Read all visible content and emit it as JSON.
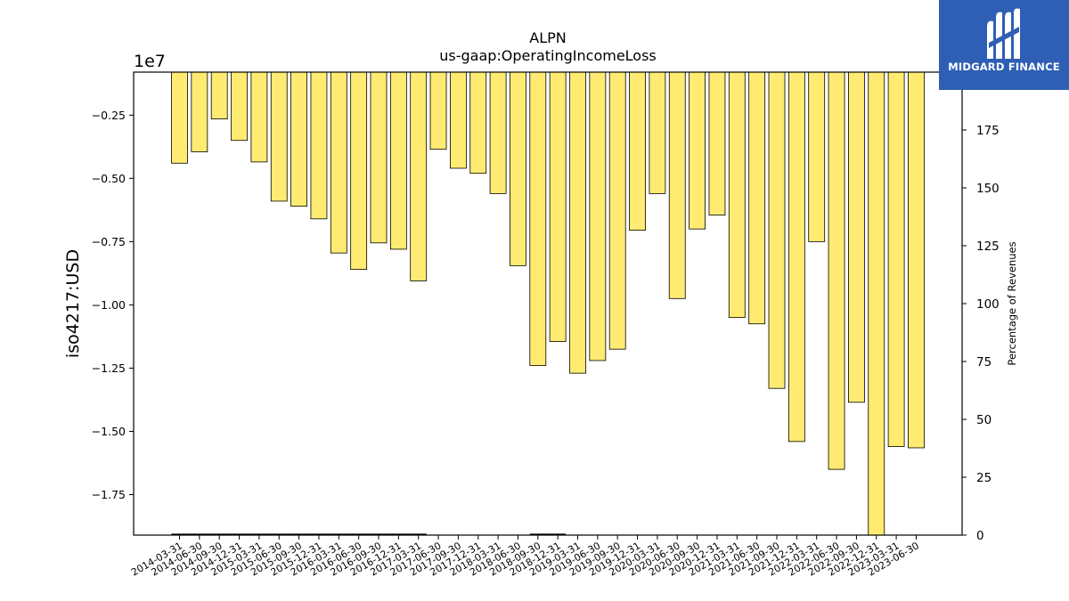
{
  "branding": {
    "name": "MIDGARD FINANCE",
    "logo_icon": "midgard-logo-icon",
    "background_color": "#2e5fb4"
  },
  "chart_data": {
    "type": "bar",
    "title": "ALPN",
    "subtitle": "us-gaap:OperatingIncomeLoss",
    "ylabel": "iso4217:USD",
    "y_offset_label": "1e7",
    "y2label": "Percentage of Revenues",
    "ylim": [
      -19100000.0,
      -800000.0
    ],
    "y2lim": [
      0,
      200
    ],
    "y_ticks": [
      -0.25,
      -0.5,
      -0.75,
      -1.0,
      -1.25,
      -1.5,
      -1.75
    ],
    "y_tick_labels": [
      "−0.25",
      "−0.50",
      "−0.75",
      "−1.00",
      "−1.25",
      "−1.50",
      "−1.75"
    ],
    "y2_ticks": [
      0,
      25,
      50,
      75,
      100,
      125,
      150,
      175
    ],
    "bar_color": "#ffeb72",
    "bar_edge_color": "#000000",
    "categories": [
      "2014-03-31",
      "2014-06-30",
      "2014-09-30",
      "2014-12-31",
      "2015-03-31",
      "2015-06-30",
      "2015-09-30",
      "2015-12-31",
      "2016-03-31",
      "2016-06-30",
      "2016-09-30",
      "2016-12-31",
      "2017-03-31",
      "2017-06-30",
      "2017-09-30",
      "2017-12-31",
      "2018-03-31",
      "2018-06-30",
      "2018-09-30",
      "2018-12-31",
      "2019-03-31",
      "2019-06-30",
      "2019-09-30",
      "2019-12-31",
      "2020-03-31",
      "2020-06-30",
      "2020-09-30",
      "2020-12-31",
      "2021-03-31",
      "2021-06-30",
      "2021-09-30",
      "2021-12-31",
      "2022-03-31",
      "2022-06-30",
      "2022-09-30",
      "2022-12-31",
      "2023-03-31",
      "2023-06-30"
    ],
    "values": [
      -4400000,
      -3950000,
      -2650000,
      -3500000,
      -4350000,
      -5900000,
      -6100000,
      -6600000,
      -7950000,
      -8600000,
      -7550000,
      -7800000,
      -9050000,
      -3850000,
      -4600000,
      -4800000,
      -5600000,
      -8450000,
      -12400000,
      -11450000,
      -12700000,
      -12200000,
      -11750000,
      -7050000,
      -5600000,
      -9750000,
      -7000000,
      -6450000,
      -10500000,
      -10750000,
      -13300000,
      -15400000,
      -7500000,
      -16500000,
      -13850000,
      -19100000,
      -15600000,
      -15650000
    ],
    "percentage_series": [
      {
        "name": "",
        "x_range": [
          "2014-03-31",
          "2017-03-31"
        ],
        "values": 0.3
      },
      {
        "name": "",
        "x_range": [
          "2018-09-30",
          "2018-12-31"
        ],
        "values": 0.3
      }
    ]
  }
}
